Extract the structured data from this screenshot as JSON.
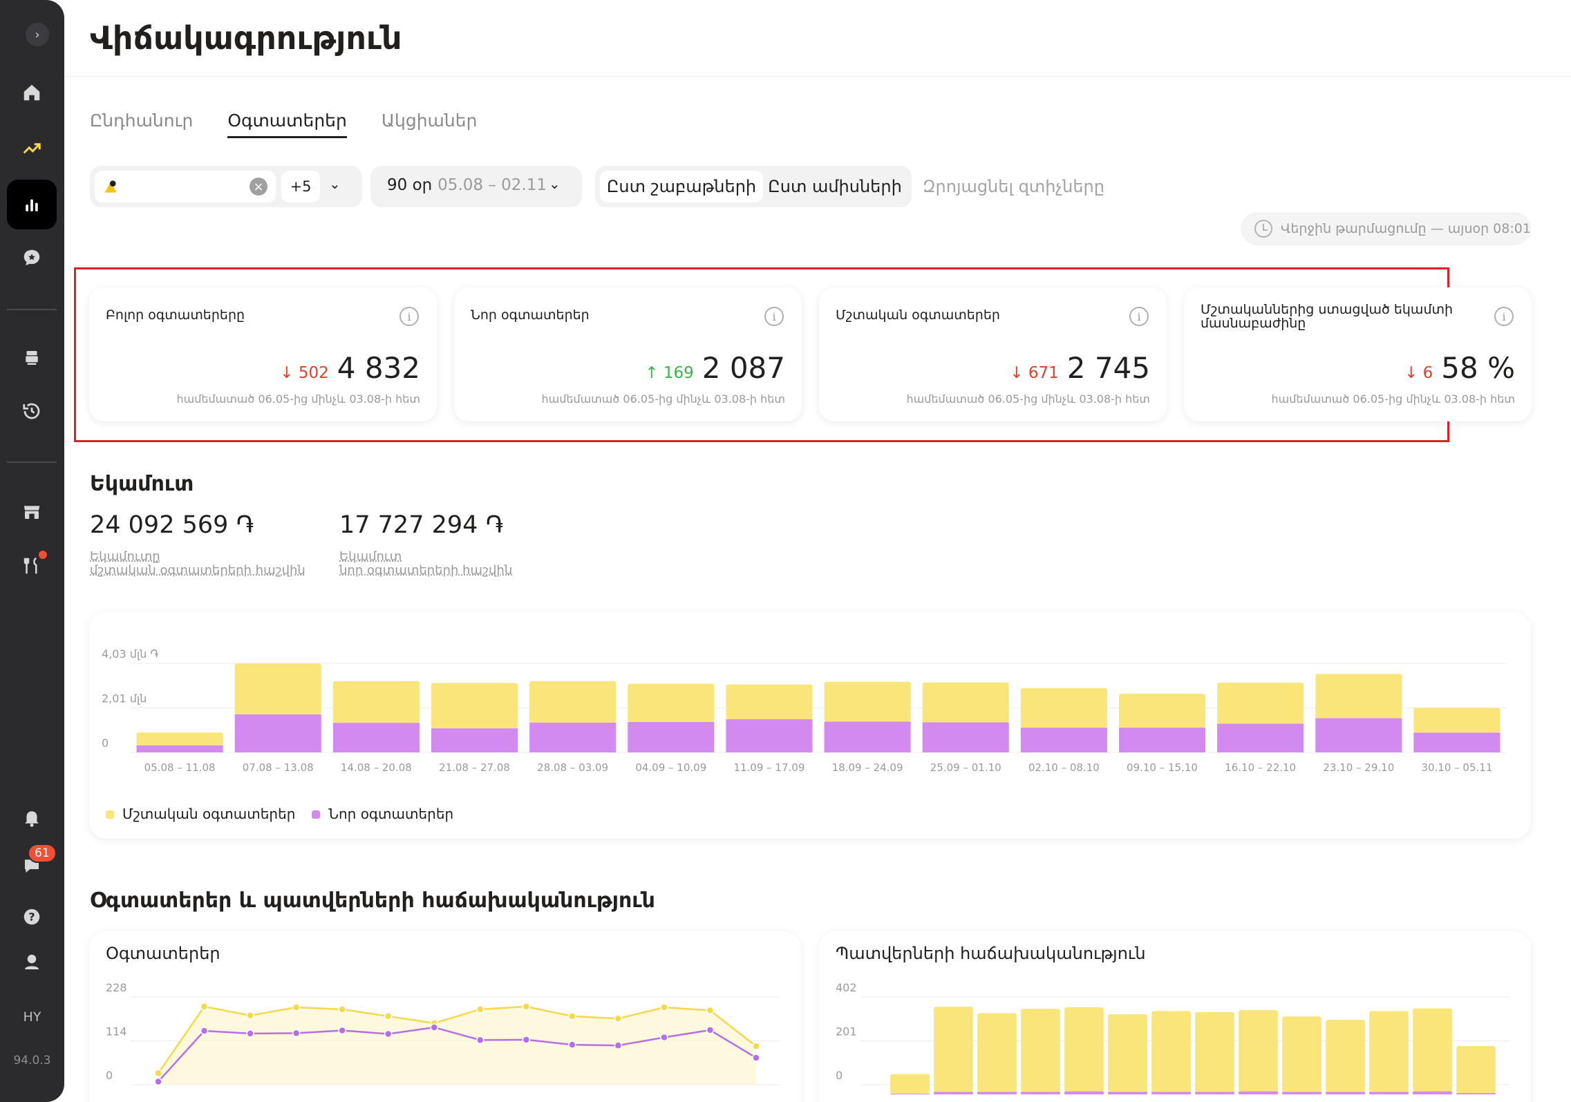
{
  "sidebar": {
    "collapse_icon": "chevron-right-icon",
    "chat_badge": "61",
    "language": "HY",
    "version": "94.0.3",
    "accent": "#f5d94a",
    "active_bg": "#000000"
  },
  "header": {
    "title": "Վիճակագրություն"
  },
  "tabs": [
    {
      "label": "Ընդհանուր",
      "active": false
    },
    {
      "label": "Օգտատերեր",
      "active": true
    },
    {
      "label": "Ակցիաներ",
      "active": false
    }
  ],
  "filters": {
    "store_more": "+5",
    "period_label": "90 օր",
    "period_range": "05.08 – 02.11",
    "by_weeks": "Ըստ շաբաթների",
    "by_months": "Ըստ ամիսների",
    "reset": "Զրոյացնել զտիչները",
    "last_refresh": "Վերջին թարմացումը — այսօր 08:01"
  },
  "kpis": [
    {
      "title": "Բոլոր օգտատերերը",
      "value": "4 832",
      "delta": "502",
      "direction": "down",
      "note": "համեմատած 06.05-ից մինչև 03.08-ի հետ"
    },
    {
      "title": "Նոր օգտատերեր",
      "value": "2 087",
      "delta": "169",
      "direction": "up",
      "note": "համեմատած 06.05-ից մինչև 03.08-ի հետ"
    },
    {
      "title": "Մշտական օգտատերեր",
      "value": "2 745",
      "delta": "671",
      "direction": "down",
      "note": "համեմատած 06.05-ից մինչև 03.08-ի հետ"
    },
    {
      "title": "Մշտականներից ստացված եկամտի մասնաբաժինը",
      "value": "58 %",
      "delta": "6",
      "direction": "down",
      "note": "համեմատած 06.05-ից մինչև 03.08-ի հետ"
    }
  ],
  "revenue": {
    "title": "Եկամուտ",
    "regular_value": "24 092 569 ֏",
    "regular_label_1": "Եկամուտը",
    "regular_label_2": "մշտական օգտատերերի հաշվին",
    "new_value": "17 727 294 ֏",
    "new_label_1": "Եկամուտ",
    "new_label_2": "նոր օգտատերերի հաշվին"
  },
  "chart_data": [
    {
      "type": "bar",
      "stacked": true,
      "categories": [
        "05.08 – 11.08",
        "07.08 – 13.08",
        "14.08 – 20.08",
        "21.08 – 27.08",
        "28.08 – 03.09",
        "04.09 – 10.09",
        "11.09 – 17.09",
        "18.09 – 24.09",
        "25.09 – 01.10",
        "02.10 – 08.10",
        "09.10 – 15.10",
        "16.10 – 22.10",
        "23.10 – 29.10",
        "30.10 – 05.11"
      ],
      "y_ticks": [
        "4,03 մլն ֏",
        "2,01 մլն",
        "0"
      ],
      "ylim": [
        0,
        4.03
      ],
      "series": [
        {
          "name": "Նոր օգտատերեր",
          "color": "#d289f0",
          "values": [
            0.32,
            1.72,
            1.34,
            1.09,
            1.35,
            1.38,
            1.5,
            1.39,
            1.36,
            1.12,
            1.12,
            1.3,
            1.55,
            0.9
          ]
        },
        {
          "name": "Մշտական օգտատերեր",
          "color": "#f9e57a",
          "values": [
            0.58,
            2.3,
            1.88,
            2.05,
            1.87,
            1.73,
            1.57,
            1.8,
            1.8,
            1.78,
            1.53,
            1.85,
            2.0,
            1.12
          ]
        }
      ]
    },
    {
      "type": "line",
      "title": "Օգտատերեր",
      "y_ticks": [
        "228",
        "114",
        "0"
      ],
      "ylim": [
        0,
        228
      ],
      "series": [
        {
          "name": "Մշտական օգտատերեր",
          "color": "#f5d94a",
          "values": [
            30,
            203,
            180,
            201,
            196,
            178,
            160,
            196,
            203,
            178,
            172,
            201,
            193,
            100
          ]
        },
        {
          "name": "Նոր օգտատերեր",
          "color": "#b56ee8",
          "values": [
            8,
            140,
            133,
            134,
            141,
            132,
            149,
            116,
            117,
            104,
            102,
            123,
            142,
            70
          ]
        }
      ]
    },
    {
      "type": "bar",
      "stacked": true,
      "title": "Պատվերների հաճախականություն",
      "y_ticks": [
        "402",
        "201",
        "0"
      ],
      "ylim": [
        0,
        402
      ],
      "series": [
        {
          "name": "Մշտական օգտատերեր",
          "color": "#f9e57a",
          "values": [
            90,
            390,
            360,
            380,
            385,
            355,
            370,
            365,
            372,
            345,
            330,
            370,
            380,
            215
          ]
        },
        {
          "name": "Նոր օգտատերեր",
          "color": "#d289f0",
          "values": [
            3,
            12,
            12,
            12,
            14,
            12,
            12,
            12,
            14,
            12,
            12,
            12,
            14,
            6
          ]
        }
      ]
    }
  ]
}
